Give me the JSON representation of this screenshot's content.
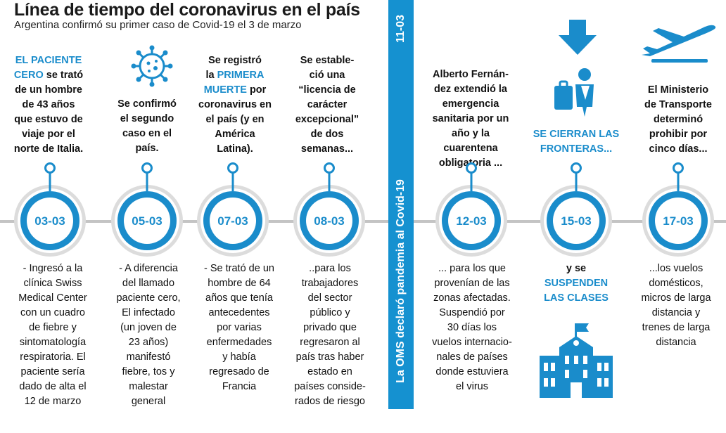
{
  "title": "Línea de tiempo del coronavirus en el país",
  "subtitle": "Argentina confirmó su primer caso de Covid-19 el 3 de marzo",
  "band": {
    "date": "11-03",
    "text": "La OMS declaró pandemia al Covid-19"
  },
  "events": [
    {
      "date": "03-03",
      "top_lines": [
        {
          "text": "EL PACIENTE",
          "hl": true
        },
        {
          "text": "CERO",
          "hl": true,
          "rest": " se trató"
        },
        {
          "text": "de un hombre"
        },
        {
          "text": "de 43 años"
        },
        {
          "text": "que estuvo de"
        },
        {
          "text": "viaje por el"
        },
        {
          "text": "norte de Italia."
        }
      ],
      "bottom_lines": [
        "- Ingresó a la",
        "clínica Swiss",
        "Medical Center",
        "con un cuadro",
        "de fiebre y",
        "sintomatología",
        "respiratoria. El",
        "paciente sería",
        "dado de alta el",
        "12 de marzo"
      ]
    },
    {
      "date": "05-03",
      "icon": "virus-icon",
      "top_lines": [
        {
          "text": "Se confirmó"
        },
        {
          "text": "el segundo"
        },
        {
          "text": "caso en el"
        },
        {
          "text": "país."
        }
      ],
      "bottom_lines": [
        "- A diferencia",
        "del llamado",
        "paciente cero,",
        "El infectado",
        "(un joven de",
        "23 años)",
        "manifestó",
        "fiebre, tos y",
        "malestar",
        "general"
      ]
    },
    {
      "date": "07-03",
      "top_lines": [
        {
          "text": "Se registró"
        },
        {
          "pre": "la ",
          "text": "PRIMERA",
          "hl": true
        },
        {
          "text": "MUERTE",
          "hl": true,
          "rest": " por"
        },
        {
          "text": "coronavirus en"
        },
        {
          "text": "el país (y en"
        },
        {
          "text": "América"
        },
        {
          "text": "Latina)."
        }
      ],
      "bottom_lines": [
        "- Se trató de un",
        "hombre de 64",
        "años que tenía",
        "antecedentes",
        "por varias",
        "enfermedades",
        "y había",
        "regresado de",
        "Francia"
      ]
    },
    {
      "date": "08-03",
      "top_lines": [
        {
          "text": "Se estable-"
        },
        {
          "text": "ció una"
        },
        {
          "text": "“licencia de"
        },
        {
          "text": "carácter"
        },
        {
          "text": "excepcional”"
        },
        {
          "text": "de dos"
        },
        {
          "text": "semanas..."
        }
      ],
      "bottom_lines": [
        "..para los",
        "trabajadores",
        "del sector",
        "público y",
        "privado que",
        "regresaron al",
        "país tras haber",
        "estado en",
        "países conside-",
        "rados de riesgo"
      ]
    },
    {
      "date": "12-03",
      "top_lines": [
        {
          "text": "Alberto Fernán-"
        },
        {
          "text": "dez extendió la"
        },
        {
          "text": "emergencia"
        },
        {
          "text": "sanitaria por un"
        },
        {
          "text": "año y la"
        },
        {
          "text": "cuarentena"
        },
        {
          "text": "obligatoria ..."
        }
      ],
      "bottom_lines": [
        "... para los que",
        "provenían de las",
        "zonas afectadas.",
        "Suspendió por",
        "30 días los",
        "vuelos internacio-",
        "nales de países",
        "donde estuviera",
        "el virus"
      ]
    },
    {
      "date": "15-03",
      "icons": [
        "arrow-down-icon",
        "traveler-icon",
        "school-icon"
      ],
      "top_lines": [
        {
          "text": "SE CIERRAN LAS",
          "hl": true
        },
        {
          "text": "FRONTERAS...",
          "hl": true
        }
      ],
      "bottom_lines": [
        {
          "text": "y se"
        },
        {
          "text": "SUSPENDEN",
          "hl": true
        },
        {
          "text": "LAS CLASES",
          "hl": true
        }
      ]
    },
    {
      "date": "17-03",
      "icon": "airplane-icon",
      "top_lines": [
        {
          "text": "El Ministerio"
        },
        {
          "text": "de Transporte"
        },
        {
          "text": "determinó"
        },
        {
          "text": "prohibir por"
        },
        {
          "text": "cinco días..."
        }
      ],
      "bottom_lines": [
        "...los vuelos",
        "domésticos,",
        "micros de larga",
        "distancia y",
        "trenes de larga",
        "distancia"
      ]
    }
  ],
  "colors": {
    "accent": "#1a8ccb",
    "band": "#1591d0",
    "line": "#c4c4c4"
  }
}
